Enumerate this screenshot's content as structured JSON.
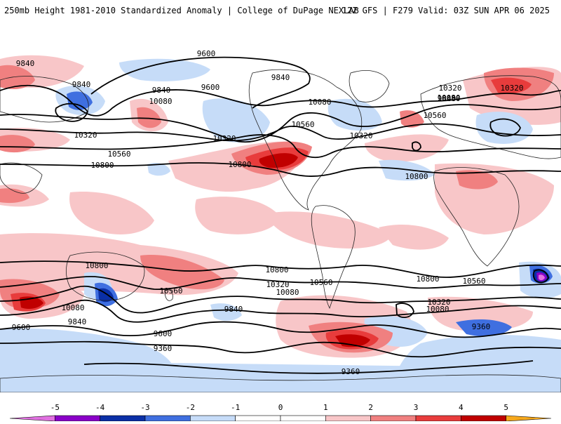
{
  "header": {
    "title": "250mb Height 1981-2010 Standardized Anomaly | College of DuPage NEXLAB",
    "run_info": "12Z GFS | F279 Valid: 03Z SUN APR 06 2025"
  },
  "colors": {
    "neg5": "#e070e0",
    "neg4": "#8a00c8",
    "neg3": "#0a2fa6",
    "neg2": "#3f6fe0",
    "neg1": "#c6dcf8",
    "zero": "#ffffff",
    "pos1": "#f8c6c8",
    "pos2": "#f08080",
    "pos3": "#e83c3c",
    "pos4": "#c00000",
    "pos5": "#f6a81c",
    "land_outline": "#222222",
    "contour": "#000000"
  },
  "colorbar": {
    "ticks": [
      "-5",
      "-4",
      "-3",
      "-2",
      "-1",
      "0",
      "1",
      "2",
      "3",
      "4",
      "5"
    ]
  },
  "contour_labels": [
    "9840",
    "9600",
    "9840",
    "9840",
    "10080",
    "10320",
    "10560",
    "10800",
    "9600",
    "9840",
    "10080",
    "10320",
    "10560",
    "10800",
    "10080",
    "10320",
    "9840",
    "10080",
    "10560",
    "10320",
    "10800",
    "10320",
    "10800",
    "10560",
    "10080",
    "9840",
    "9600",
    "9360",
    "10800",
    "10560",
    "10320",
    "10080",
    "9840",
    "9600",
    "9360",
    "10800",
    "10560",
    "10320",
    "10080",
    "9360"
  ]
}
